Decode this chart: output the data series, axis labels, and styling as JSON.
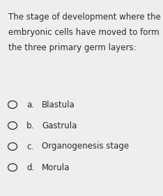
{
  "question_lines": [
    "The stage of development where the",
    "embryonic cells have moved to form",
    "the three primary germ layers:"
  ],
  "options": [
    {
      "letter": "a.",
      "text": "Blastula"
    },
    {
      "letter": "b.",
      "text": "Gastrula"
    },
    {
      "letter": "c.",
      "text": "Organogenesis stage"
    },
    {
      "letter": "d.",
      "text": "Morula"
    }
  ],
  "bg_color": "#f0eeec",
  "text_color": "#2a2a2a",
  "font_size_question": 8.5,
  "font_size_options": 8.5,
  "figsize": [
    2.34,
    2.81
  ],
  "dpi": 100
}
